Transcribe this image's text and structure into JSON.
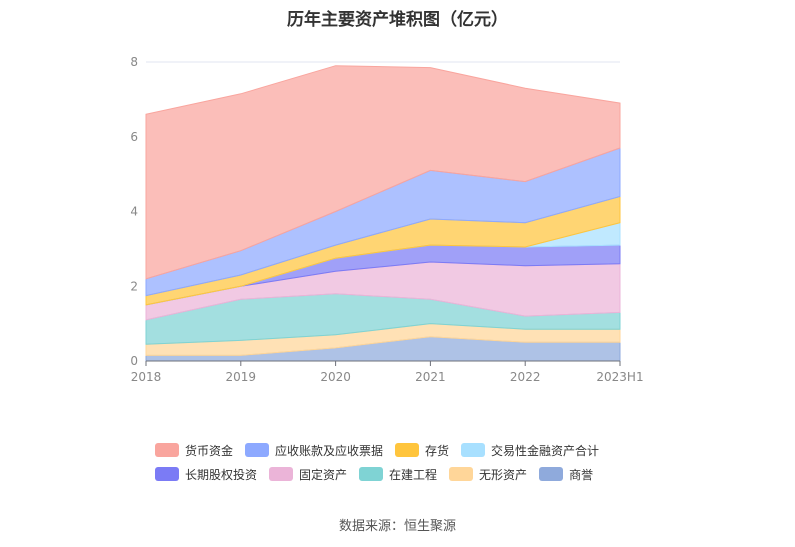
{
  "chart_data": {
    "type": "area",
    "stacked": true,
    "title": "历年主要资产堆积图（亿元）",
    "categories": [
      "2018",
      "2019",
      "2020",
      "2021",
      "2022",
      "2023H1"
    ],
    "y_ticks": [
      "0",
      "2",
      "4",
      "6",
      "8"
    ],
    "ylim": [
      0,
      8
    ],
    "grid": "horizontal-major-line-at-top",
    "legend_position": "bottom",
    "series": [
      {
        "name": "商誉",
        "color": "#8FAADC",
        "values": [
          0.15,
          0.15,
          0.35,
          0.65,
          0.5,
          0.5
        ]
      },
      {
        "name": "无形资产",
        "color": "#FFD699",
        "values": [
          0.3,
          0.4,
          0.35,
          0.35,
          0.35,
          0.35
        ]
      },
      {
        "name": "在建工程",
        "color": "#7FD3D4",
        "values": [
          0.65,
          1.1,
          1.1,
          0.65,
          0.35,
          0.45
        ]
      },
      {
        "name": "固定资产",
        "color": "#EBB4D8",
        "values": [
          0.4,
          0.35,
          0.6,
          1.0,
          1.35,
          1.3
        ]
      },
      {
        "name": "长期股权投资",
        "color": "#7B7BF5",
        "values": [
          0.0,
          0.0,
          0.35,
          0.45,
          0.5,
          0.5
        ]
      },
      {
        "name": "交易性金融资产合计",
        "color": "#A8E0FF",
        "values": [
          0.0,
          0.0,
          0.0,
          0.0,
          0.0,
          0.6
        ]
      },
      {
        "name": "存货",
        "color": "#FFC53D",
        "values": [
          0.25,
          0.3,
          0.35,
          0.7,
          0.65,
          0.7
        ]
      },
      {
        "name": "应收账款及应收票据",
        "color": "#8DA9FF",
        "values": [
          0.45,
          0.65,
          0.9,
          1.3,
          1.1,
          1.3
        ]
      },
      {
        "name": "货币资金",
        "color": "#F9A59E",
        "values": [
          4.4,
          4.2,
          3.9,
          2.75,
          2.5,
          1.2
        ]
      }
    ]
  },
  "legend": {
    "rows": [
      [
        "货币资金",
        "应收账款及应收票据",
        "存货",
        "交易性金融资产合计"
      ],
      [
        "长期股权投资",
        "固定资产",
        "在建工程",
        "无形资产",
        "商誉"
      ]
    ]
  },
  "source": "数据来源：恒生聚源"
}
